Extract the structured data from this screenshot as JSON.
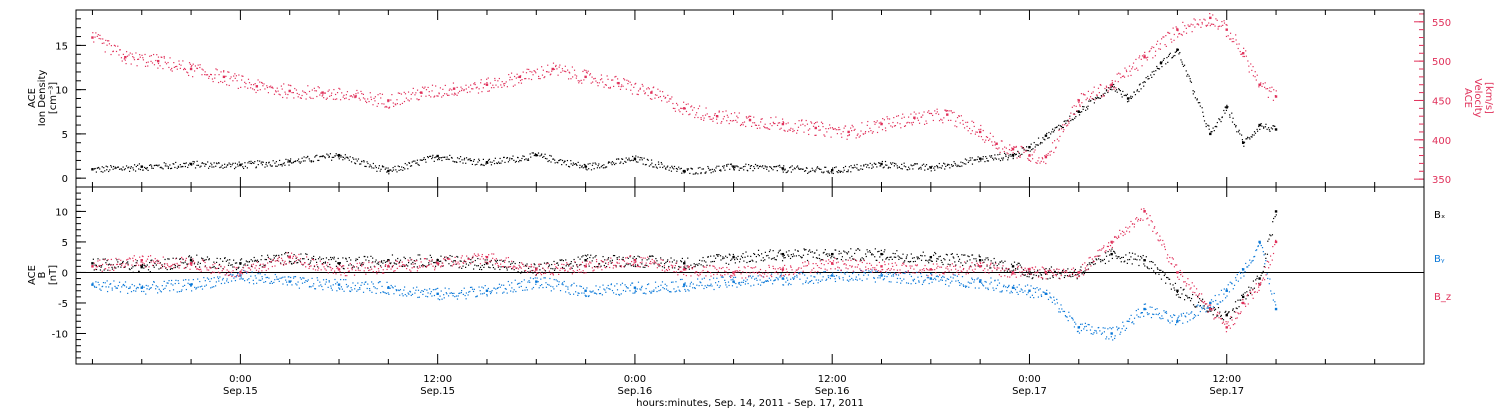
{
  "chart_data": [
    {
      "type": "scatter",
      "panel": "top",
      "left_axis_title": [
        "ACE",
        "Ion Density",
        "[cm⁻³]"
      ],
      "right_axis_title": [
        "ACE",
        "Velocity",
        "[km/s]"
      ],
      "left_ylim": [
        -1,
        19
      ],
      "left_ticks": [
        0,
        5,
        10,
        15
      ],
      "right_ylim": [
        340,
        565
      ],
      "right_ticks": [
        350,
        400,
        450,
        500,
        550
      ],
      "series": [
        {
          "name": "",
          "axis": "left",
          "color": "#000000",
          "x": [
            -9,
            -6,
            -3,
            0,
            3,
            6,
            9,
            12,
            15,
            18,
            21,
            24,
            27,
            30,
            33,
            36,
            39,
            42,
            45,
            47,
            48,
            49,
            51,
            53,
            54,
            56,
            57,
            59,
            60,
            61,
            62,
            63
          ],
          "y": [
            1.0,
            1.3,
            1.6,
            1.5,
            1.9,
            2.6,
            0.8,
            2.5,
            1.8,
            2.6,
            1.3,
            2.2,
            0.8,
            1.3,
            1.1,
            0.9,
            1.6,
            1.2,
            2.2,
            2.6,
            3.5,
            4.8,
            7.5,
            10.5,
            9.0,
            13.0,
            14.5,
            5.0,
            8.0,
            4.0,
            6.0,
            5.5
          ]
        },
        {
          "name": "",
          "axis": "right",
          "color": "#e0305a",
          "x": [
            -9,
            -7,
            -5,
            -3,
            -1,
            1,
            3,
            5,
            7,
            9,
            11,
            13,
            15,
            17,
            19,
            21,
            23,
            25,
            27,
            29,
            31,
            33,
            35,
            37,
            39,
            41,
            43,
            45,
            46,
            47,
            48,
            49,
            51,
            53,
            55,
            57,
            59,
            60,
            61,
            62,
            63
          ],
          "y": [
            530,
            505,
            500,
            490,
            480,
            468,
            462,
            460,
            455,
            450,
            460,
            465,
            470,
            480,
            490,
            480,
            472,
            460,
            440,
            430,
            425,
            420,
            415,
            410,
            420,
            428,
            432,
            410,
            395,
            388,
            380,
            378,
            450,
            470,
            505,
            540,
            555,
            540,
            510,
            470,
            455
          ]
        }
      ]
    },
    {
      "type": "scatter",
      "panel": "bottom",
      "axis_title": [
        "ACE",
        "B",
        "[nT]"
      ],
      "ylim": [
        -15,
        14
      ],
      "ticks": [
        -10,
        -5,
        0,
        5,
        10
      ],
      "zero_line": true,
      "series": [
        {
          "name": "Bₓ",
          "color": "#000000",
          "x": [
            -9,
            -6,
            -3,
            0,
            3,
            6,
            9,
            12,
            15,
            18,
            21,
            24,
            27,
            30,
            33,
            36,
            39,
            42,
            45,
            47,
            48,
            49,
            51,
            53,
            55,
            57,
            59,
            60,
            61,
            62,
            63
          ],
          "y": [
            1.5,
            1.0,
            2.0,
            1.5,
            2.5,
            1.5,
            2.0,
            2.0,
            1.5,
            0.5,
            2.0,
            2.0,
            1.5,
            2.5,
            3.0,
            3.0,
            3.0,
            2.5,
            2.0,
            1.0,
            0.0,
            0.0,
            0.0,
            3.0,
            2.0,
            -3.0,
            -6.0,
            -7.0,
            -4.0,
            -1.0,
            10.0
          ]
        },
        {
          "name": "Bᵧ",
          "color": "#0a78d8",
          "x": [
            -9,
            -6,
            -3,
            0,
            3,
            6,
            9,
            12,
            15,
            18,
            21,
            24,
            27,
            30,
            33,
            36,
            39,
            42,
            45,
            47,
            48,
            49,
            51,
            53,
            55,
            57,
            59,
            60,
            61,
            62,
            63
          ],
          "y": [
            -2.0,
            -2.5,
            -2.0,
            -0.5,
            -1.5,
            -2.0,
            -2.5,
            -3.5,
            -3.0,
            -1.5,
            -3.0,
            -2.5,
            -2.0,
            -1.5,
            -1.0,
            -0.5,
            -0.5,
            -1.0,
            -1.5,
            -2.5,
            -3.0,
            -3.5,
            -9.0,
            -10.0,
            -6.0,
            -8.0,
            -5.0,
            -3.0,
            0.5,
            5.0,
            -6.0
          ]
        },
        {
          "name": "B_z",
          "color": "#e0305a",
          "x": [
            -9,
            -6,
            -3,
            0,
            3,
            6,
            9,
            12,
            15,
            18,
            21,
            24,
            27,
            30,
            33,
            36,
            39,
            42,
            45,
            47,
            48,
            49,
            51,
            53,
            55,
            57,
            59,
            60,
            61,
            62,
            63
          ],
          "y": [
            1.0,
            2.0,
            1.5,
            0.0,
            2.5,
            0.5,
            1.0,
            1.5,
            2.5,
            0.5,
            1.0,
            2.0,
            0.5,
            0.0,
            0.5,
            1.5,
            1.0,
            0.5,
            1.0,
            0.0,
            0.5,
            0.0,
            0.0,
            5.0,
            10.0,
            0.0,
            -6.0,
            -9.0,
            -5.0,
            -2.0,
            5.0
          ]
        }
      ]
    }
  ],
  "x_axis": {
    "xlim": [
      -10,
      72
    ],
    "tick_labels": [
      {
        "x": 0,
        "time": "0:00",
        "date": "Sep.15"
      },
      {
        "x": 12,
        "time": "12:00",
        "date": "Sep.15"
      },
      {
        "x": 24,
        "time": "0:00",
        "date": "Sep.16"
      },
      {
        "x": 36,
        "time": "12:00",
        "date": "Sep.16"
      },
      {
        "x": 48,
        "time": "0:00",
        "date": "Sep.17"
      },
      {
        "x": 60,
        "time": "12:00",
        "date": "Sep.17"
      }
    ],
    "label": "hours:minutes, Sep. 14, 2011 - Sep. 17, 2011"
  }
}
